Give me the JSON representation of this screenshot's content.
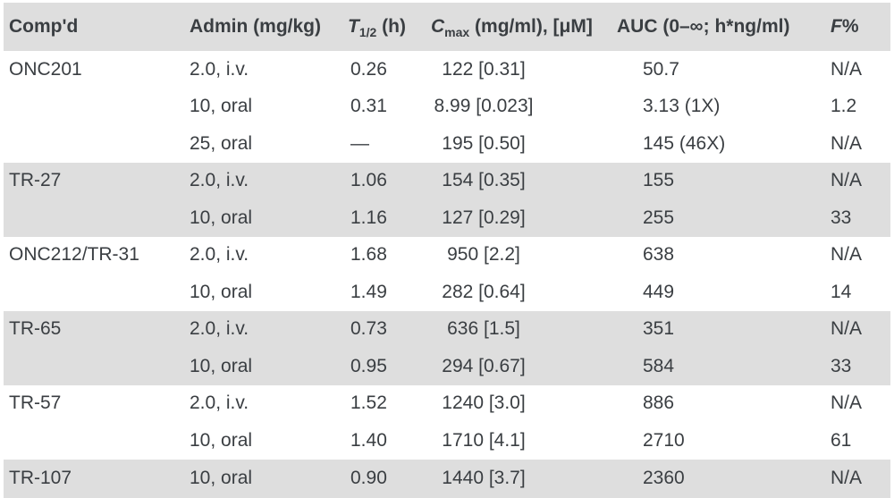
{
  "table": {
    "colors": {
      "band_gray": "#dedede",
      "text": "#3a3e42",
      "background": "#ffffff"
    },
    "header": {
      "compound": "Comp'd",
      "admin": "Admin (mg/kg)",
      "t_half_symbol": "T",
      "t_half_sub": "1/2",
      "t_half_unit": " (h)",
      "cmax_symbol": "C",
      "cmax_sub": "max",
      "cmax_unit": " (mg/ml), [μM]",
      "auc": "AUC (0–∞; h*ng/ml)",
      "f_symbol": "F",
      "f_unit": "%"
    },
    "groups": [
      {
        "compound": "ONC201",
        "shaded": false,
        "rows": [
          {
            "admin": "2.0, i.v.",
            "t_half": "0.26",
            "cmax": "122 [0.31]",
            "auc": "50.7",
            "f": "N/A"
          },
          {
            "admin": "10, oral",
            "t_half": "0.31",
            "cmax": "8.99 [0.023]",
            "auc": "3.13 (1X)",
            "f": "1.2"
          },
          {
            "admin": "25, oral",
            "t_half": "—",
            "cmax": "195 [0.50]",
            "auc": "145 (46X)",
            "f": "N/A"
          }
        ]
      },
      {
        "compound": "TR-27",
        "shaded": true,
        "rows": [
          {
            "admin": "2.0, i.v.",
            "t_half": "1.06",
            "cmax": "154 [0.35]",
            "auc": "155",
            "f": "N/A"
          },
          {
            "admin": "10, oral",
            "t_half": "1.16",
            "cmax": "127 [0.29]",
            "auc": "255",
            "f": "33"
          }
        ]
      },
      {
        "compound": "ONC212/TR-31",
        "shaded": false,
        "rows": [
          {
            "admin": "2.0, i.v.",
            "t_half": "1.68",
            "cmax": "950 [2.2]",
            "auc": "638",
            "f": "N/A"
          },
          {
            "admin": "10, oral",
            "t_half": "1.49",
            "cmax": "282 [0.64]",
            "auc": "449",
            "f": "14"
          }
        ]
      },
      {
        "compound": "TR-65",
        "shaded": true,
        "rows": [
          {
            "admin": "2.0, i.v.",
            "t_half": "0.73",
            "cmax": "636 [1.5]",
            "auc": "351",
            "f": "N/A"
          },
          {
            "admin": "10, oral",
            "t_half": "0.95",
            "cmax": "294 [0.67]",
            "auc": "584",
            "f": "33"
          }
        ]
      },
      {
        "compound": "TR-57",
        "shaded": false,
        "rows": [
          {
            "admin": "2.0, i.v.",
            "t_half": "1.52",
            "cmax": "1240 [3.0]",
            "auc": "886",
            "f": "N/A"
          },
          {
            "admin": "10, oral",
            "t_half": "1.40",
            "cmax": "1710 [4.1]",
            "auc": "2710",
            "f": "61"
          }
        ]
      },
      {
        "compound": "TR-107",
        "shaded": true,
        "rows": [
          {
            "admin": "10, oral",
            "t_half": "0.90",
            "cmax": "1440 [3.7]",
            "auc": "2360",
            "f": "N/A"
          }
        ]
      }
    ]
  }
}
